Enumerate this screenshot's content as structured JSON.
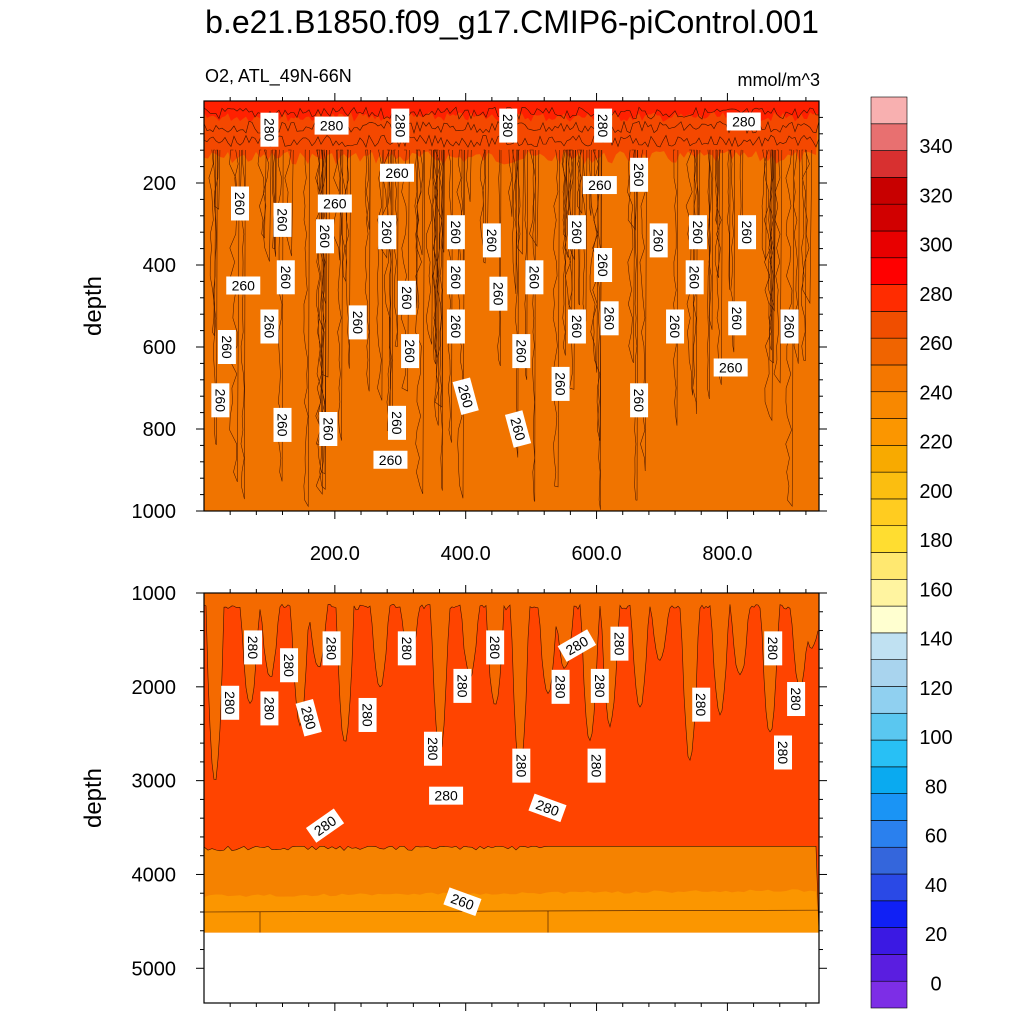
{
  "title": "b.e21.B1850.f09_g17.CMIP6-piControl.001",
  "variable_label": "O2, ATL_49N-66N",
  "units_label": "mmol/m^3",
  "colors": {
    "level_fills": [
      "#7d2ee6",
      "#5a1ee0",
      "#3b19e3",
      "#1020f5",
      "#2a49e6",
      "#3466dc",
      "#2a80ee",
      "#1a94f5",
      "#0aaaf0",
      "#28c0f5",
      "#5ac7f0",
      "#90d0f0",
      "#a9d4ee",
      "#c0e1f2",
      "#ffffd0",
      "#fff4a0",
      "#ffe870",
      "#ffdd30",
      "#ffcc20",
      "#fbbe10",
      "#f8aa00",
      "#fb9600",
      "#f88800",
      "#f47700",
      "#f06400",
      "#f04e00",
      "#ff2c00",
      "#ff0000",
      "#e80000",
      "#d10000",
      "#c80000",
      "#d83030",
      "#e87070",
      "#f8b0b0"
    ],
    "upper_background": "#f07400",
    "upper_top_band": "#f44800",
    "upper_surface": "#ff2000",
    "lower_main": "#ff4400",
    "lower_top": "#f46a00",
    "lower_deep": "#f58200",
    "lower_deepest": "#fb9600"
  },
  "chart_data": [
    {
      "type": "contour",
      "panel": "upper",
      "xlabel": "",
      "ylabel": "depth",
      "xlim": [
        0,
        940
      ],
      "ylim": [
        1000,
        0
      ],
      "x_ticks": [
        "200.0",
        "400.0",
        "600.0",
        "800.0"
      ],
      "x_tick_values": [
        200,
        400,
        600,
        800
      ],
      "y_ticks": [
        "200",
        "400",
        "600",
        "800",
        "1000"
      ],
      "y_tick_values": [
        200,
        400,
        600,
        800,
        1000
      ],
      "contour_labels": [
        {
          "text": "280",
          "x": 100,
          "y": 70,
          "angle": 90
        },
        {
          "text": "280",
          "x": 195,
          "y": 60,
          "angle": 0
        },
        {
          "text": "280",
          "x": 300,
          "y": 60,
          "angle": 90
        },
        {
          "text": "280",
          "x": 465,
          "y": 60,
          "angle": 90
        },
        {
          "text": "280",
          "x": 610,
          "y": 60,
          "angle": 90
        },
        {
          "text": "280",
          "x": 825,
          "y": 50,
          "angle": 0
        },
        {
          "text": "260",
          "x": 295,
          "y": 175,
          "angle": 0
        },
        {
          "text": "260",
          "x": 605,
          "y": 205,
          "angle": 0
        },
        {
          "text": "260",
          "x": 665,
          "y": 180,
          "angle": 90
        },
        {
          "text": "260",
          "x": 55,
          "y": 250,
          "angle": 90
        },
        {
          "text": "260",
          "x": 200,
          "y": 250,
          "angle": 0
        },
        {
          "text": "260",
          "x": 120,
          "y": 290,
          "angle": 90
        },
        {
          "text": "260",
          "x": 185,
          "y": 330,
          "angle": 90
        },
        {
          "text": "260",
          "x": 280,
          "y": 320,
          "angle": 90
        },
        {
          "text": "260",
          "x": 385,
          "y": 320,
          "angle": 90
        },
        {
          "text": "260",
          "x": 440,
          "y": 340,
          "angle": 90
        },
        {
          "text": "260",
          "x": 570,
          "y": 320,
          "angle": 90
        },
        {
          "text": "260",
          "x": 695,
          "y": 340,
          "angle": 90
        },
        {
          "text": "260",
          "x": 755,
          "y": 320,
          "angle": 90
        },
        {
          "text": "260",
          "x": 830,
          "y": 320,
          "angle": 90
        },
        {
          "text": "260",
          "x": 610,
          "y": 400,
          "angle": 90
        },
        {
          "text": "260",
          "x": 60,
          "y": 450,
          "angle": 0
        },
        {
          "text": "260",
          "x": 125,
          "y": 430,
          "angle": 90
        },
        {
          "text": "260",
          "x": 385,
          "y": 430,
          "angle": 90
        },
        {
          "text": "260",
          "x": 505,
          "y": 430,
          "angle": 90
        },
        {
          "text": "260",
          "x": 750,
          "y": 430,
          "angle": 90
        },
        {
          "text": "260",
          "x": 310,
          "y": 480,
          "angle": 90
        },
        {
          "text": "260",
          "x": 450,
          "y": 470,
          "angle": 90
        },
        {
          "text": "260",
          "x": 235,
          "y": 540,
          "angle": 90
        },
        {
          "text": "260",
          "x": 100,
          "y": 550,
          "angle": 90
        },
        {
          "text": "260",
          "x": 385,
          "y": 550,
          "angle": 90
        },
        {
          "text": "260",
          "x": 570,
          "y": 550,
          "angle": 90
        },
        {
          "text": "260",
          "x": 620,
          "y": 530,
          "angle": 90
        },
        {
          "text": "260",
          "x": 720,
          "y": 550,
          "angle": 90
        },
        {
          "text": "260",
          "x": 815,
          "y": 530,
          "angle": 90
        },
        {
          "text": "260",
          "x": 895,
          "y": 550,
          "angle": 90
        },
        {
          "text": "260",
          "x": 35,
          "y": 600,
          "angle": 90
        },
        {
          "text": "260",
          "x": 315,
          "y": 610,
          "angle": 90
        },
        {
          "text": "260",
          "x": 485,
          "y": 610,
          "angle": 90
        },
        {
          "text": "260",
          "x": 805,
          "y": 650,
          "angle": 0
        },
        {
          "text": "260",
          "x": 25,
          "y": 730,
          "angle": 90
        },
        {
          "text": "260",
          "x": 400,
          "y": 720,
          "angle": 75
        },
        {
          "text": "260",
          "x": 545,
          "y": 690,
          "angle": 90
        },
        {
          "text": "260",
          "x": 665,
          "y": 730,
          "angle": 90
        },
        {
          "text": "260",
          "x": 120,
          "y": 790,
          "angle": 90
        },
        {
          "text": "260",
          "x": 190,
          "y": 800,
          "angle": 90
        },
        {
          "text": "260",
          "x": 295,
          "y": 785,
          "angle": 90
        },
        {
          "text": "260",
          "x": 480,
          "y": 800,
          "angle": 75
        },
        {
          "text": "260",
          "x": 285,
          "y": 875,
          "angle": 0
        }
      ]
    },
    {
      "type": "contour",
      "panel": "lower",
      "xlabel": "",
      "ylabel": "depth",
      "xlim": [
        0,
        940
      ],
      "ylim": [
        5370,
        1000
      ],
      "y_ticks": [
        "1000",
        "2000",
        "3000",
        "4000",
        "5000"
      ],
      "y_tick_values": [
        1000,
        2000,
        3000,
        4000,
        5000
      ],
      "missing_below_depth": 4620,
      "contour_labels": [
        {
          "text": "280",
          "x": 75,
          "y": 1580,
          "angle": 90
        },
        {
          "text": "280",
          "x": 195,
          "y": 1590,
          "angle": 90
        },
        {
          "text": "280",
          "x": 130,
          "y": 1770,
          "angle": 90
        },
        {
          "text": "280",
          "x": 310,
          "y": 1590,
          "angle": 90
        },
        {
          "text": "280",
          "x": 445,
          "y": 1580,
          "angle": 90
        },
        {
          "text": "280",
          "x": 570,
          "y": 1560,
          "angle": -30
        },
        {
          "text": "280",
          "x": 635,
          "y": 1540,
          "angle": 90
        },
        {
          "text": "280",
          "x": 870,
          "y": 1590,
          "angle": 90
        },
        {
          "text": "280",
          "x": 40,
          "y": 2170,
          "angle": 90
        },
        {
          "text": "280",
          "x": 100,
          "y": 2230,
          "angle": 90
        },
        {
          "text": "280",
          "x": 160,
          "y": 2330,
          "angle": 75
        },
        {
          "text": "280",
          "x": 250,
          "y": 2300,
          "angle": 90
        },
        {
          "text": "280",
          "x": 395,
          "y": 1990,
          "angle": 90
        },
        {
          "text": "280",
          "x": 545,
          "y": 2000,
          "angle": 90
        },
        {
          "text": "280",
          "x": 605,
          "y": 1990,
          "angle": 90
        },
        {
          "text": "280",
          "x": 760,
          "y": 2190,
          "angle": 90
        },
        {
          "text": "280",
          "x": 905,
          "y": 2130,
          "angle": 90
        },
        {
          "text": "280",
          "x": 350,
          "y": 2660,
          "angle": 90
        },
        {
          "text": "280",
          "x": 485,
          "y": 2840,
          "angle": 90
        },
        {
          "text": "280",
          "x": 600,
          "y": 2840,
          "angle": 90
        },
        {
          "text": "280",
          "x": 885,
          "y": 2700,
          "angle": 90
        },
        {
          "text": "280",
          "x": 370,
          "y": 3160,
          "angle": 0
        },
        {
          "text": "280",
          "x": 525,
          "y": 3290,
          "angle": 20
        },
        {
          "text": "280",
          "x": 185,
          "y": 3480,
          "angle": -35
        },
        {
          "text": "260",
          "x": 395,
          "y": 4290,
          "angle": 20
        }
      ]
    },
    {
      "type": "colorbar",
      "labels": [
        "340",
        "320",
        "300",
        "280",
        "260",
        "240",
        "220",
        "200",
        "180",
        "160",
        "140",
        "120",
        "100",
        "80",
        "60",
        "40",
        "20",
        "0"
      ],
      "label_values": [
        340,
        320,
        300,
        280,
        260,
        240,
        220,
        200,
        180,
        160,
        140,
        120,
        100,
        80,
        60,
        40,
        20,
        0
      ],
      "range": [
        -10,
        360
      ]
    }
  ]
}
